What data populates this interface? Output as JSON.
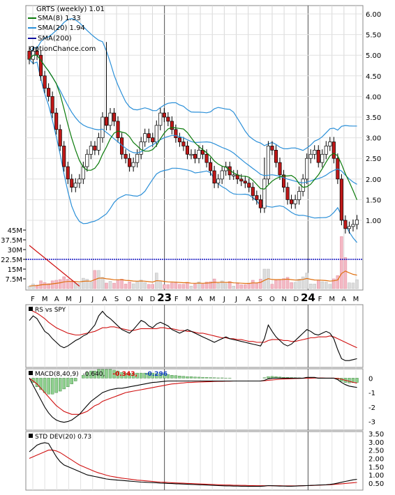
{
  "chart_data": {
    "type": "candlestick",
    "title": "GRTS (weekly) 1.01",
    "watermark": "OptionChance.com",
    "legend": [
      {
        "label": "SMA(8) 1.33",
        "color": "#0a7a0a"
      },
      {
        "label": "SMA(20) 1.94",
        "color": "#2a8fd8"
      },
      {
        "label": "SMA(200)",
        "color": "#1010a0"
      }
    ],
    "x_month_labels": [
      "F",
      "M",
      "A",
      "M",
      "J",
      "J",
      "A",
      "S",
      "O",
      "N",
      "D",
      "23",
      "F",
      "M",
      "A",
      "M",
      "J",
      "J",
      "A",
      "S",
      "O",
      "N",
      "D",
      "24",
      "F",
      "M",
      "A",
      "M"
    ],
    "year_labels": [
      "23",
      "24"
    ],
    "price_axis": {
      "ticks": [
        "6.00",
        "5.50",
        "5.00",
        "4.50",
        "4.00",
        "3.50",
        "3.00",
        "2.50",
        "2.00",
        "1.50",
        "1.00"
      ],
      "ylim": [
        0.6,
        6.0
      ]
    },
    "volume_axis": {
      "ticks": [
        "45M",
        "37.5M",
        "30M",
        "22.5M",
        "15M",
        "7.5M"
      ],
      "ylim": [
        0,
        48
      ],
      "unit": "M"
    },
    "closes": [
      4.9,
      5.1,
      5.0,
      4.5,
      4.2,
      4.0,
      3.6,
      3.2,
      2.8,
      2.3,
      2.0,
      1.8,
      1.9,
      2.0,
      2.3,
      2.6,
      2.8,
      2.7,
      3.0,
      3.5,
      3.3,
      3.6,
      3.4,
      3.0,
      2.6,
      2.5,
      2.3,
      2.4,
      2.6,
      2.9,
      3.1,
      3.0,
      2.9,
      3.3,
      3.6,
      3.5,
      3.4,
      3.2,
      3.0,
      2.9,
      2.8,
      2.6,
      2.6,
      2.5,
      2.7,
      2.6,
      2.4,
      2.2,
      1.9,
      2.0,
      2.2,
      2.3,
      2.1,
      2.1,
      2.0,
      1.95,
      1.9,
      1.8,
      1.6,
      1.5,
      1.3,
      2.0,
      2.8,
      2.7,
      2.4,
      2.1,
      1.8,
      1.5,
      1.4,
      1.5,
      1.7,
      2.0,
      2.5,
      2.6,
      2.7,
      2.4,
      2.6,
      2.8,
      2.9,
      2.5,
      2.0,
      1.0,
      0.8,
      0.85,
      0.9,
      1.01
    ],
    "rs_vs_spy": {
      "label": "RS vs SPY",
      "values": [
        50,
        55,
        52,
        45,
        38,
        35,
        30,
        26,
        22,
        20,
        22,
        25,
        28,
        30,
        33,
        35,
        40,
        45,
        55,
        60,
        55,
        52,
        48,
        44,
        40,
        38,
        36,
        40,
        45,
        50,
        48,
        44,
        42,
        46,
        48,
        46,
        44,
        40,
        38,
        36,
        38,
        40,
        38,
        36,
        34,
        32,
        30,
        28,
        26,
        28,
        30,
        32,
        30,
        29,
        28,
        27,
        26,
        25,
        24,
        23,
        22,
        30,
        45,
        38,
        32,
        28,
        24,
        22,
        24,
        28,
        32,
        36,
        40,
        38,
        35,
        34,
        36,
        38,
        36,
        30,
        18,
        8,
        6,
        6,
        7,
        8
      ],
      "signal": [
        62,
        60,
        58,
        55,
        52,
        48,
        45,
        42,
        40,
        38,
        36,
        35,
        34,
        34,
        35,
        36,
        37,
        38,
        40,
        42,
        42,
        43,
        43,
        42,
        41,
        40,
        39,
        39,
        40,
        41,
        41,
        41,
        41,
        41,
        42,
        42,
        41,
        41,
        40,
        39,
        39,
        38,
        38,
        37,
        36,
        36,
        35,
        34,
        33,
        32,
        31,
        31,
        30,
        30,
        29,
        29,
        28,
        27,
        27,
        26,
        26,
        26,
        28,
        29,
        29,
        29,
        28,
        28,
        27,
        27,
        28,
        29,
        30,
        31,
        31,
        32,
        32,
        32,
        33,
        32,
        30,
        28,
        26,
        24,
        22,
        20
      ]
    },
    "macd": {
      "label": "MACD(8,40,9)",
      "value_text": "-0.640,",
      "signal_text": "-0.343,",
      "hist_text": "-0.296",
      "axis_ticks": [
        "0",
        "-1",
        "-2",
        "-3"
      ],
      "ylim": [
        -3.5,
        0.5
      ],
      "macd": [
        0,
        -0.5,
        -1.0,
        -1.5,
        -2.0,
        -2.4,
        -2.7,
        -2.9,
        -3.0,
        -3.05,
        -3.0,
        -2.9,
        -2.7,
        -2.5,
        -2.2,
        -1.9,
        -1.6,
        -1.4,
        -1.2,
        -1.0,
        -0.9,
        -0.8,
        -0.75,
        -0.7,
        -0.7,
        -0.65,
        -0.6,
        -0.55,
        -0.5,
        -0.45,
        -0.4,
        -0.35,
        -0.3,
        -0.28,
        -0.25,
        -0.22,
        -0.2,
        -0.2,
        -0.2,
        -0.2,
        -0.2,
        -0.2,
        -0.2,
        -0.2,
        -0.2,
        -0.2,
        -0.2,
        -0.2,
        -0.2,
        -0.2,
        -0.2,
        -0.2,
        -0.2,
        -0.2,
        -0.2,
        -0.2,
        -0.2,
        -0.2,
        -0.2,
        -0.2,
        -0.2,
        -0.15,
        -0.05,
        0,
        0,
        0,
        0,
        0,
        0,
        0,
        0,
        0,
        0.05,
        0.05,
        0.05,
        0,
        0,
        0,
        0,
        0,
        -0.1,
        -0.3,
        -0.45,
        -0.55,
        -0.6,
        -0.64
      ],
      "signal": [
        0,
        -0.2,
        -0.4,
        -0.7,
        -1.0,
        -1.3,
        -1.6,
        -1.9,
        -2.1,
        -2.3,
        -2.4,
        -2.5,
        -2.5,
        -2.5,
        -2.4,
        -2.3,
        -2.1,
        -1.9,
        -1.8,
        -1.6,
        -1.5,
        -1.4,
        -1.3,
        -1.2,
        -1.1,
        -1.0,
        -0.95,
        -0.9,
        -0.85,
        -0.8,
        -0.75,
        -0.7,
        -0.65,
        -0.6,
        -0.55,
        -0.5,
        -0.45,
        -0.4,
        -0.38,
        -0.35,
        -0.33,
        -0.3,
        -0.3,
        -0.28,
        -0.27,
        -0.26,
        -0.25,
        -0.24,
        -0.23,
        -0.22,
        -0.22,
        -0.21,
        -0.21,
        -0.2,
        -0.2,
        -0.2,
        -0.2,
        -0.2,
        -0.2,
        -0.2,
        -0.2,
        -0.18,
        -0.15,
        -0.12,
        -0.1,
        -0.08,
        -0.06,
        -0.05,
        -0.04,
        -0.03,
        -0.02,
        -0.01,
        0,
        0,
        0.01,
        0.01,
        0.01,
        0,
        0,
        0,
        -0.02,
        -0.08,
        -0.15,
        -0.22,
        -0.29,
        -0.343
      ]
    },
    "std_dev": {
      "label": "STD DEV(20) 0.73",
      "axis_ticks": [
        "3.50",
        "3.00",
        "2.50",
        "2.00",
        "1.50",
        "1.00",
        "0.50"
      ],
      "ylim": [
        0.2,
        3.5
      ],
      "values": [
        2.4,
        2.6,
        2.8,
        2.9,
        2.95,
        2.9,
        2.5,
        2.1,
        1.8,
        1.6,
        1.5,
        1.4,
        1.3,
        1.2,
        1.1,
        1.0,
        0.95,
        0.9,
        0.85,
        0.8,
        0.75,
        0.72,
        0.7,
        0.68,
        0.66,
        0.64,
        0.62,
        0.6,
        0.58,
        0.56,
        0.55,
        0.54,
        0.53,
        0.52,
        0.5,
        0.49,
        0.48,
        0.47,
        0.46,
        0.45,
        0.44,
        0.43,
        0.42,
        0.41,
        0.4,
        0.39,
        0.38,
        0.37,
        0.36,
        0.35,
        0.34,
        0.33,
        0.33,
        0.32,
        0.32,
        0.31,
        0.31,
        0.3,
        0.3,
        0.3,
        0.3,
        0.32,
        0.35,
        0.34,
        0.33,
        0.32,
        0.32,
        0.31,
        0.31,
        0.32,
        0.33,
        0.34,
        0.35,
        0.36,
        0.37,
        0.38,
        0.39,
        0.4,
        0.42,
        0.45,
        0.5,
        0.55,
        0.6,
        0.65,
        0.7,
        0.73
      ],
      "signal": [
        2.0,
        2.1,
        2.2,
        2.3,
        2.4,
        2.5,
        2.5,
        2.45,
        2.35,
        2.2,
        2.05,
        1.9,
        1.75,
        1.6,
        1.5,
        1.4,
        1.3,
        1.2,
        1.12,
        1.05,
        0.98,
        0.92,
        0.88,
        0.84,
        0.8,
        0.77,
        0.74,
        0.71,
        0.68,
        0.66,
        0.64,
        0.62,
        0.6,
        0.58,
        0.56,
        0.55,
        0.54,
        0.52,
        0.51,
        0.5,
        0.49,
        0.48,
        0.47,
        0.46,
        0.45,
        0.44,
        0.43,
        0.42,
        0.41,
        0.4,
        0.39,
        0.38,
        0.38,
        0.37,
        0.37,
        0.36,
        0.36,
        0.35,
        0.35,
        0.34,
        0.34,
        0.34,
        0.34,
        0.34,
        0.34,
        0.34,
        0.33,
        0.33,
        0.33,
        0.33,
        0.34,
        0.34,
        0.35,
        0.35,
        0.36,
        0.37,
        0.38,
        0.39,
        0.4,
        0.42,
        0.44,
        0.46,
        0.48,
        0.5,
        0.52,
        0.54
      ]
    }
  }
}
